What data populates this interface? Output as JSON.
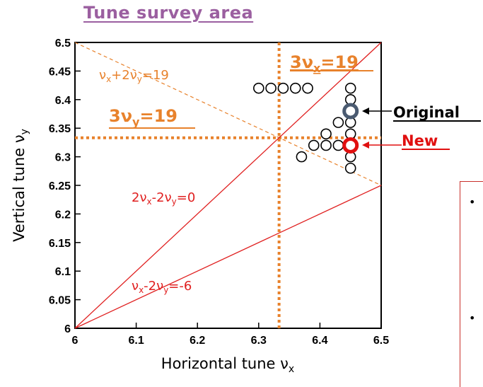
{
  "page": {
    "title": "Tune survey area",
    "bullets": [
      "•",
      "•"
    ]
  },
  "chart_data": {
    "type": "scatter",
    "xlabel": "Horizontal tune ν",
    "xlabel_sub": "x",
    "ylabel": "Vertical tune ν",
    "ylabel_sub": "y",
    "xlim": [
      6.0,
      6.5
    ],
    "ylim": [
      6.0,
      6.5
    ],
    "x_ticks": [
      "6",
      "6.1",
      "6.2",
      "6.3",
      "6.4",
      "6.5"
    ],
    "y_ticks": [
      "6",
      "6.05",
      "6.1",
      "6.15",
      "6.2",
      "6.25",
      "6.3",
      "6.35",
      "6.4",
      "6.45",
      "6.5"
    ],
    "grid": false,
    "colors": {
      "resonance": "#e02020",
      "third_order": "#e8822c",
      "survey": "#000000",
      "original": "#4a5a70",
      "new": "#e01010"
    },
    "survey_points": [
      {
        "x": 6.3,
        "y": 6.42
      },
      {
        "x": 6.32,
        "y": 6.42
      },
      {
        "x": 6.34,
        "y": 6.42
      },
      {
        "x": 6.36,
        "y": 6.42
      },
      {
        "x": 6.38,
        "y": 6.42
      },
      {
        "x": 6.45,
        "y": 6.42
      },
      {
        "x": 6.45,
        "y": 6.4
      },
      {
        "x": 6.45,
        "y": 6.38
      },
      {
        "x": 6.45,
        "y": 6.36
      },
      {
        "x": 6.45,
        "y": 6.34
      },
      {
        "x": 6.45,
        "y": 6.32
      },
      {
        "x": 6.45,
        "y": 6.3
      },
      {
        "x": 6.45,
        "y": 6.28
      },
      {
        "x": 6.43,
        "y": 6.36
      },
      {
        "x": 6.43,
        "y": 6.32
      },
      {
        "x": 6.41,
        "y": 6.34
      },
      {
        "x": 6.41,
        "y": 6.32
      },
      {
        "x": 6.39,
        "y": 6.32
      },
      {
        "x": 6.37,
        "y": 6.3
      }
    ],
    "original": {
      "x": 6.45,
      "y": 6.38,
      "label": "Original"
    },
    "new": {
      "x": 6.45,
      "y": 6.32,
      "label": "New"
    },
    "lines": [
      {
        "name": "3νx=19 (vertical)",
        "points": [
          [
            6.3333,
            6.0
          ],
          [
            6.3333,
            6.5
          ]
        ],
        "style": "third_order"
      },
      {
        "name": "3νy=19 (horizontal)",
        "points": [
          [
            6.0,
            6.3333
          ],
          [
            6.5,
            6.3333
          ]
        ],
        "style": "third_order"
      },
      {
        "name": "νx+2νy=19",
        "points": [
          [
            6.0,
            6.5
          ],
          [
            6.5,
            6.25
          ]
        ],
        "style": "third_order_thin"
      },
      {
        "name": "2νx-2νy=0",
        "points": [
          [
            6.0,
            6.0
          ],
          [
            6.5,
            6.5
          ]
        ],
        "style": "resonance"
      },
      {
        "name": "νx-2νy=-6",
        "points": [
          [
            6.0,
            6.0
          ],
          [
            6.5,
            6.25
          ]
        ],
        "style": "resonance"
      }
    ],
    "annotations": {
      "third_x": {
        "main": "3ν",
        "sub": "x",
        "tail": "=19"
      },
      "third_y": {
        "main": "3ν",
        "sub": "y",
        "tail": "=19"
      },
      "sum": {
        "p1": "ν",
        "s1": "x",
        "p2": "+2ν",
        "s2": "y",
        "p3": "=19"
      },
      "diff0": {
        "p1": "2ν",
        "s1": "x",
        "p2": "-2ν",
        "s2": "y",
        "p3": "=0"
      },
      "diff6": {
        "p1": "ν",
        "s1": "x",
        "p2": "-2ν",
        "s2": "y",
        "p3": "=-6"
      }
    }
  }
}
